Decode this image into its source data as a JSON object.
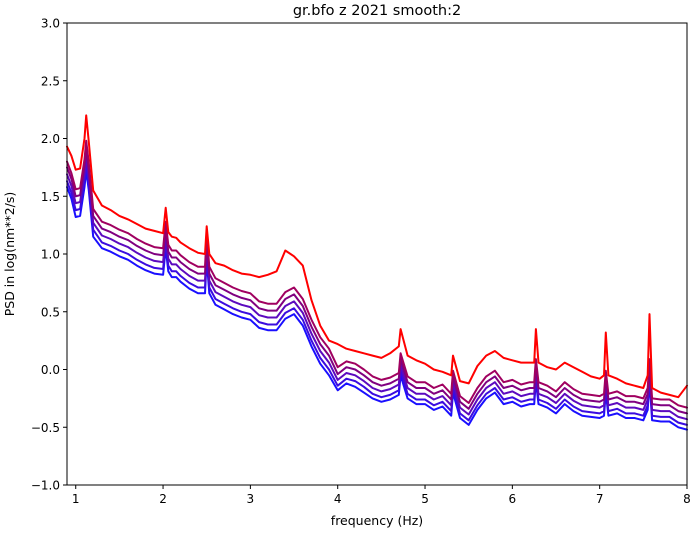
{
  "chart_data": {
    "type": "line",
    "title": "gr.bfo z 2021 smooth:2",
    "xlabel": "frequency (Hz)",
    "ylabel": "PSD in log(nm**2/s)",
    "xlim": [
      0.9,
      8.0
    ],
    "ylim": [
      -1.0,
      3.0
    ],
    "x_ticks": [
      1,
      2,
      3,
      4,
      5,
      6,
      7,
      8
    ],
    "x_tick_labels": [
      "1",
      "2",
      "3",
      "4",
      "5",
      "6",
      "7",
      "8"
    ],
    "y_ticks": [
      -1.0,
      -0.5,
      0.0,
      0.5,
      1.0,
      1.5,
      2.0,
      2.5,
      3.0
    ],
    "y_tick_labels": [
      "−1.0",
      "−0.5",
      "0.0",
      "0.5",
      "1.0",
      "1.5",
      "2.0",
      "2.5",
      "3.0"
    ],
    "grid": false,
    "legend": "none",
    "x": [
      0.9,
      0.95,
      1.0,
      1.05,
      1.1,
      1.12,
      1.15,
      1.2,
      1.3,
      1.4,
      1.5,
      1.6,
      1.7,
      1.8,
      1.9,
      2.0,
      2.03,
      2.06,
      2.1,
      2.15,
      2.2,
      2.3,
      2.4,
      2.48,
      2.5,
      2.53,
      2.6,
      2.7,
      2.8,
      2.9,
      3.0,
      3.1,
      3.2,
      3.3,
      3.4,
      3.5,
      3.6,
      3.7,
      3.8,
      3.9,
      4.0,
      4.1,
      4.2,
      4.3,
      4.4,
      4.5,
      4.6,
      4.7,
      4.72,
      4.8,
      4.9,
      5.0,
      5.1,
      5.2,
      5.3,
      5.32,
      5.4,
      5.5,
      5.6,
      5.7,
      5.8,
      5.9,
      6.0,
      6.1,
      6.2,
      6.25,
      6.27,
      6.3,
      6.4,
      6.5,
      6.6,
      6.7,
      6.8,
      6.9,
      7.0,
      7.05,
      7.07,
      7.1,
      7.2,
      7.3,
      7.4,
      7.5,
      7.55,
      7.57,
      7.6,
      7.7,
      7.8,
      7.9,
      8.0
    ],
    "series": [
      {
        "color": "#1a0fff",
        "values": [
          1.58,
          1.48,
          1.32,
          1.33,
          1.58,
          1.72,
          1.55,
          1.15,
          1.05,
          1.02,
          0.98,
          0.95,
          0.9,
          0.86,
          0.83,
          0.82,
          1.05,
          0.85,
          0.8,
          0.8,
          0.76,
          0.7,
          0.66,
          0.66,
          0.95,
          0.66,
          0.56,
          0.52,
          0.48,
          0.45,
          0.43,
          0.36,
          0.34,
          0.34,
          0.44,
          0.48,
          0.38,
          0.2,
          0.05,
          -0.05,
          -0.18,
          -0.12,
          -0.15,
          -0.2,
          -0.25,
          -0.28,
          -0.26,
          -0.22,
          -0.05,
          -0.25,
          -0.3,
          -0.3,
          -0.35,
          -0.32,
          -0.4,
          -0.2,
          -0.42,
          -0.48,
          -0.35,
          -0.25,
          -0.2,
          -0.3,
          -0.28,
          -0.32,
          -0.3,
          -0.3,
          -0.1,
          -0.3,
          -0.33,
          -0.38,
          -0.3,
          -0.36,
          -0.4,
          -0.41,
          -0.42,
          -0.4,
          -0.2,
          -0.4,
          -0.38,
          -0.42,
          -0.42,
          -0.44,
          -0.35,
          -0.1,
          -0.44,
          -0.45,
          -0.45,
          -0.5,
          -0.52
        ]
      },
      {
        "color": "#3b0cdf",
        "values": [
          1.63,
          1.53,
          1.38,
          1.39,
          1.64,
          1.78,
          1.61,
          1.21,
          1.1,
          1.07,
          1.03,
          1.0,
          0.95,
          0.91,
          0.88,
          0.87,
          1.1,
          0.9,
          0.85,
          0.85,
          0.81,
          0.75,
          0.71,
          0.71,
          1.0,
          0.71,
          0.61,
          0.57,
          0.53,
          0.5,
          0.48,
          0.41,
          0.39,
          0.39,
          0.49,
          0.53,
          0.43,
          0.25,
          0.1,
          0.0,
          -0.14,
          -0.08,
          -0.1,
          -0.15,
          -0.21,
          -0.24,
          -0.22,
          -0.18,
          -0.01,
          -0.21,
          -0.26,
          -0.26,
          -0.31,
          -0.28,
          -0.36,
          -0.16,
          -0.38,
          -0.44,
          -0.31,
          -0.21,
          -0.16,
          -0.26,
          -0.24,
          -0.28,
          -0.26,
          -0.26,
          -0.06,
          -0.26,
          -0.29,
          -0.34,
          -0.26,
          -0.32,
          -0.36,
          -0.37,
          -0.38,
          -0.36,
          -0.16,
          -0.36,
          -0.34,
          -0.38,
          -0.38,
          -0.4,
          -0.31,
          -0.06,
          -0.4,
          -0.41,
          -0.41,
          -0.46,
          -0.48
        ]
      },
      {
        "color": "#5c0abf",
        "values": [
          1.69,
          1.59,
          1.44,
          1.45,
          1.7,
          1.84,
          1.67,
          1.27,
          1.16,
          1.13,
          1.09,
          1.06,
          1.01,
          0.97,
          0.94,
          0.93,
          1.16,
          0.96,
          0.91,
          0.91,
          0.87,
          0.81,
          0.77,
          0.77,
          1.06,
          0.77,
          0.67,
          0.63,
          0.59,
          0.56,
          0.54,
          0.47,
          0.45,
          0.45,
          0.55,
          0.59,
          0.49,
          0.31,
          0.16,
          0.06,
          -0.09,
          -0.03,
          -0.05,
          -0.1,
          -0.16,
          -0.19,
          -0.17,
          -0.13,
          0.04,
          -0.16,
          -0.21,
          -0.21,
          -0.26,
          -0.23,
          -0.31,
          -0.11,
          -0.33,
          -0.39,
          -0.26,
          -0.16,
          -0.11,
          -0.21,
          -0.19,
          -0.23,
          -0.21,
          -0.21,
          -0.01,
          -0.21,
          -0.24,
          -0.29,
          -0.21,
          -0.27,
          -0.31,
          -0.32,
          -0.33,
          -0.31,
          -0.11,
          -0.31,
          -0.29,
          -0.33,
          -0.33,
          -0.35,
          -0.26,
          -0.01,
          -0.35,
          -0.36,
          -0.36,
          -0.41,
          -0.43
        ]
      },
      {
        "color": "#800080",
        "values": [
          1.75,
          1.65,
          1.5,
          1.51,
          1.76,
          1.9,
          1.73,
          1.33,
          1.22,
          1.19,
          1.15,
          1.12,
          1.07,
          1.03,
          1.0,
          0.99,
          1.22,
          1.02,
          0.97,
          0.97,
          0.93,
          0.87,
          0.83,
          0.83,
          1.12,
          0.83,
          0.73,
          0.69,
          0.65,
          0.62,
          0.6,
          0.53,
          0.51,
          0.51,
          0.61,
          0.65,
          0.55,
          0.37,
          0.22,
          0.12,
          -0.04,
          0.02,
          0.0,
          -0.05,
          -0.11,
          -0.14,
          -0.12,
          -0.08,
          0.09,
          -0.11,
          -0.16,
          -0.16,
          -0.21,
          -0.18,
          -0.26,
          -0.06,
          -0.28,
          -0.34,
          -0.21,
          -0.11,
          -0.06,
          -0.16,
          -0.14,
          -0.18,
          -0.16,
          -0.16,
          0.04,
          -0.16,
          -0.19,
          -0.24,
          -0.16,
          -0.22,
          -0.26,
          -0.27,
          -0.28,
          -0.26,
          -0.06,
          -0.26,
          -0.24,
          -0.28,
          -0.28,
          -0.3,
          -0.21,
          0.04,
          -0.3,
          -0.31,
          -0.31,
          -0.36,
          -0.38
        ]
      },
      {
        "color": "#a00060",
        "values": [
          1.8,
          1.7,
          1.56,
          1.57,
          1.82,
          1.98,
          1.79,
          1.39,
          1.28,
          1.25,
          1.21,
          1.18,
          1.13,
          1.09,
          1.06,
          1.05,
          1.28,
          1.08,
          1.03,
          1.03,
          0.99,
          0.93,
          0.89,
          0.89,
          1.18,
          0.89,
          0.79,
          0.75,
          0.71,
          0.68,
          0.66,
          0.59,
          0.57,
          0.57,
          0.67,
          0.71,
          0.61,
          0.43,
          0.28,
          0.18,
          0.02,
          0.07,
          0.05,
          0.0,
          -0.06,
          -0.09,
          -0.07,
          -0.03,
          0.14,
          -0.06,
          -0.11,
          -0.11,
          -0.16,
          -0.13,
          -0.21,
          -0.01,
          -0.23,
          -0.29,
          -0.16,
          -0.06,
          -0.01,
          -0.11,
          -0.09,
          -0.13,
          -0.11,
          -0.11,
          0.09,
          -0.11,
          -0.14,
          -0.19,
          -0.11,
          -0.17,
          -0.21,
          -0.22,
          -0.23,
          -0.21,
          -0.01,
          -0.21,
          -0.19,
          -0.23,
          -0.23,
          -0.25,
          -0.16,
          0.09,
          -0.25,
          -0.26,
          -0.26,
          -0.31,
          -0.33
        ]
      },
      {
        "color": "#ff0000",
        "values": [
          1.93,
          1.85,
          1.73,
          1.74,
          2.0,
          2.2,
          1.97,
          1.55,
          1.42,
          1.38,
          1.33,
          1.3,
          1.26,
          1.22,
          1.2,
          1.18,
          1.4,
          1.19,
          1.15,
          1.14,
          1.1,
          1.05,
          1.01,
          1.0,
          1.24,
          1.0,
          0.92,
          0.9,
          0.86,
          0.83,
          0.82,
          0.8,
          0.82,
          0.85,
          1.03,
          0.98,
          0.9,
          0.6,
          0.38,
          0.25,
          0.22,
          0.18,
          0.16,
          0.14,
          0.12,
          0.1,
          0.14,
          0.2,
          0.35,
          0.12,
          0.08,
          0.05,
          0.0,
          -0.02,
          -0.05,
          0.12,
          -0.1,
          -0.12,
          0.03,
          0.12,
          0.16,
          0.1,
          0.08,
          0.06,
          0.06,
          0.06,
          0.35,
          0.06,
          0.02,
          0.0,
          0.06,
          0.02,
          -0.02,
          -0.06,
          -0.08,
          -0.05,
          0.32,
          -0.05,
          -0.08,
          -0.12,
          -0.14,
          -0.16,
          -0.05,
          0.48,
          -0.16,
          -0.2,
          -0.22,
          -0.24,
          -0.14
        ]
      }
    ]
  }
}
